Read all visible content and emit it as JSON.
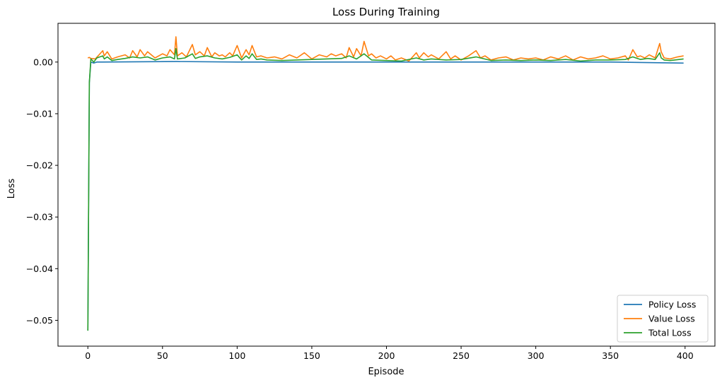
{
  "chart_data": {
    "type": "line",
    "title": "Loss During Training",
    "xlabel": "Episode",
    "ylabel": "Loss",
    "xlim": [
      -20,
      420
    ],
    "ylim": [
      -0.055,
      0.0075
    ],
    "xticks": [
      0,
      50,
      100,
      150,
      200,
      250,
      300,
      350,
      400
    ],
    "xtick_labels": [
      "0",
      "50",
      "100",
      "150",
      "200",
      "250",
      "300",
      "350",
      "400"
    ],
    "yticks": [
      0.0,
      -0.01,
      -0.02,
      -0.03,
      -0.04,
      -0.05
    ],
    "ytick_labels": [
      "0.00",
      "−0.01",
      "−0.02",
      "−0.03",
      "−0.04",
      "−0.05"
    ],
    "grid": false,
    "legend_position": "lower-right",
    "series_order": [
      "Policy Loss",
      "Value Loss",
      "Total Loss"
    ],
    "colors": {
      "Policy Loss": "#1f77b4",
      "Value Loss": "#ff7f0e",
      "Total Loss": "#2ca02c"
    },
    "n_points": 400,
    "series": [
      {
        "name": "Policy Loss",
        "color": "#1f77b4",
        "x": [
          0,
          1,
          2,
          4,
          6,
          10,
          60,
          100,
          150,
          200,
          250,
          300,
          350,
          399
        ],
        "values": [
          -0.052,
          -0.004,
          0.0,
          -0.0002,
          0.0,
          0.0,
          0.0001,
          0.0,
          0.0,
          0.0,
          0.0,
          0.0,
          0.0,
          -0.0002
        ]
      },
      {
        "name": "Value Loss",
        "color": "#ff7f0e",
        "x": [
          0,
          1,
          2,
          5,
          10,
          11,
          13,
          16,
          20,
          25,
          28,
          30,
          33,
          35,
          38,
          40,
          45,
          50,
          53,
          55,
          58,
          59,
          60,
          63,
          66,
          70,
          72,
          75,
          78,
          80,
          83,
          85,
          88,
          90,
          92,
          95,
          97,
          100,
          103,
          106,
          108,
          110,
          113,
          116,
          120,
          125,
          130,
          135,
          140,
          145,
          150,
          155,
          160,
          163,
          166,
          170,
          173,
          175,
          178,
          180,
          183,
          185,
          188,
          190,
          193,
          196,
          200,
          203,
          206,
          210,
          215,
          220,
          222,
          225,
          228,
          230,
          235,
          240,
          243,
          246,
          250,
          255,
          260,
          263,
          266,
          270,
          275,
          280,
          285,
          290,
          295,
          300,
          305,
          310,
          315,
          320,
          325,
          330,
          335,
          340,
          345,
          350,
          355,
          360,
          362,
          365,
          368,
          370,
          373,
          376,
          380,
          383,
          384,
          386,
          390,
          395,
          399
        ],
        "values": [
          0.0008,
          0.0009,
          0.0007,
          0.0006,
          0.0022,
          0.0012,
          0.002,
          0.0006,
          0.001,
          0.0014,
          0.0008,
          0.0022,
          0.001,
          0.0024,
          0.0012,
          0.002,
          0.0008,
          0.0016,
          0.0012,
          0.0024,
          0.0014,
          0.0049,
          0.0012,
          0.0018,
          0.001,
          0.0034,
          0.0014,
          0.002,
          0.0012,
          0.0028,
          0.001,
          0.0018,
          0.0012,
          0.0014,
          0.001,
          0.0018,
          0.0012,
          0.0032,
          0.0008,
          0.0024,
          0.0014,
          0.0032,
          0.001,
          0.0012,
          0.0008,
          0.001,
          0.0006,
          0.0014,
          0.0008,
          0.0018,
          0.0006,
          0.0014,
          0.001,
          0.0016,
          0.0012,
          0.0016,
          0.0008,
          0.0028,
          0.001,
          0.0026,
          0.0012,
          0.004,
          0.0012,
          0.0016,
          0.0008,
          0.0012,
          0.0006,
          0.0012,
          0.0004,
          0.0008,
          0.0002,
          0.0018,
          0.0008,
          0.0018,
          0.001,
          0.0014,
          0.0006,
          0.002,
          0.0006,
          0.0012,
          0.0004,
          0.0012,
          0.0022,
          0.0008,
          0.0012,
          0.0004,
          0.0008,
          0.001,
          0.0004,
          0.0008,
          0.0006,
          0.0008,
          0.0004,
          0.001,
          0.0006,
          0.0012,
          0.0004,
          0.001,
          0.0006,
          0.0008,
          0.0012,
          0.0006,
          0.0008,
          0.0012,
          0.0004,
          0.0024,
          0.001,
          0.0012,
          0.0008,
          0.0014,
          0.0008,
          0.0036,
          0.002,
          0.0008,
          0.0006,
          0.001,
          0.0012
        ]
      },
      {
        "name": "Total Loss",
        "color": "#2ca02c",
        "x": [
          0,
          1,
          2,
          4,
          6,
          10,
          11,
          13,
          16,
          20,
          25,
          30,
          35,
          40,
          45,
          50,
          55,
          58,
          59,
          60,
          65,
          70,
          72,
          75,
          80,
          85,
          90,
          95,
          100,
          103,
          106,
          108,
          110,
          113,
          116,
          120,
          130,
          140,
          150,
          160,
          170,
          175,
          180,
          185,
          190,
          200,
          210,
          220,
          225,
          230,
          240,
          250,
          260,
          270,
          280,
          290,
          300,
          310,
          320,
          330,
          340,
          350,
          360,
          365,
          370,
          375,
          380,
          383,
          384,
          386,
          390,
          399
        ],
        "values": [
          -0.052,
          -0.004,
          0.0006,
          0.0,
          0.0008,
          0.0012,
          0.0006,
          0.001,
          0.0003,
          0.0005,
          0.0007,
          0.001,
          0.0008,
          0.001,
          0.0004,
          0.0008,
          0.001,
          0.0006,
          0.0026,
          0.0006,
          0.0008,
          0.0016,
          0.0007,
          0.001,
          0.0012,
          0.0008,
          0.0006,
          0.0009,
          0.0014,
          0.0004,
          0.0012,
          0.0007,
          0.0016,
          0.0005,
          0.0006,
          0.0004,
          0.0003,
          0.0004,
          0.0005,
          0.0006,
          0.0007,
          0.0012,
          0.0006,
          0.0016,
          0.0004,
          0.0003,
          0.0002,
          0.0008,
          0.0004,
          0.0006,
          0.0004,
          0.0005,
          0.001,
          0.0003,
          0.0004,
          0.0003,
          0.0004,
          0.0003,
          0.0005,
          0.0002,
          0.0004,
          0.0004,
          0.0005,
          0.001,
          0.0005,
          0.0007,
          0.0005,
          0.0018,
          0.0008,
          0.0004,
          0.0003,
          0.0006
        ]
      }
    ]
  }
}
